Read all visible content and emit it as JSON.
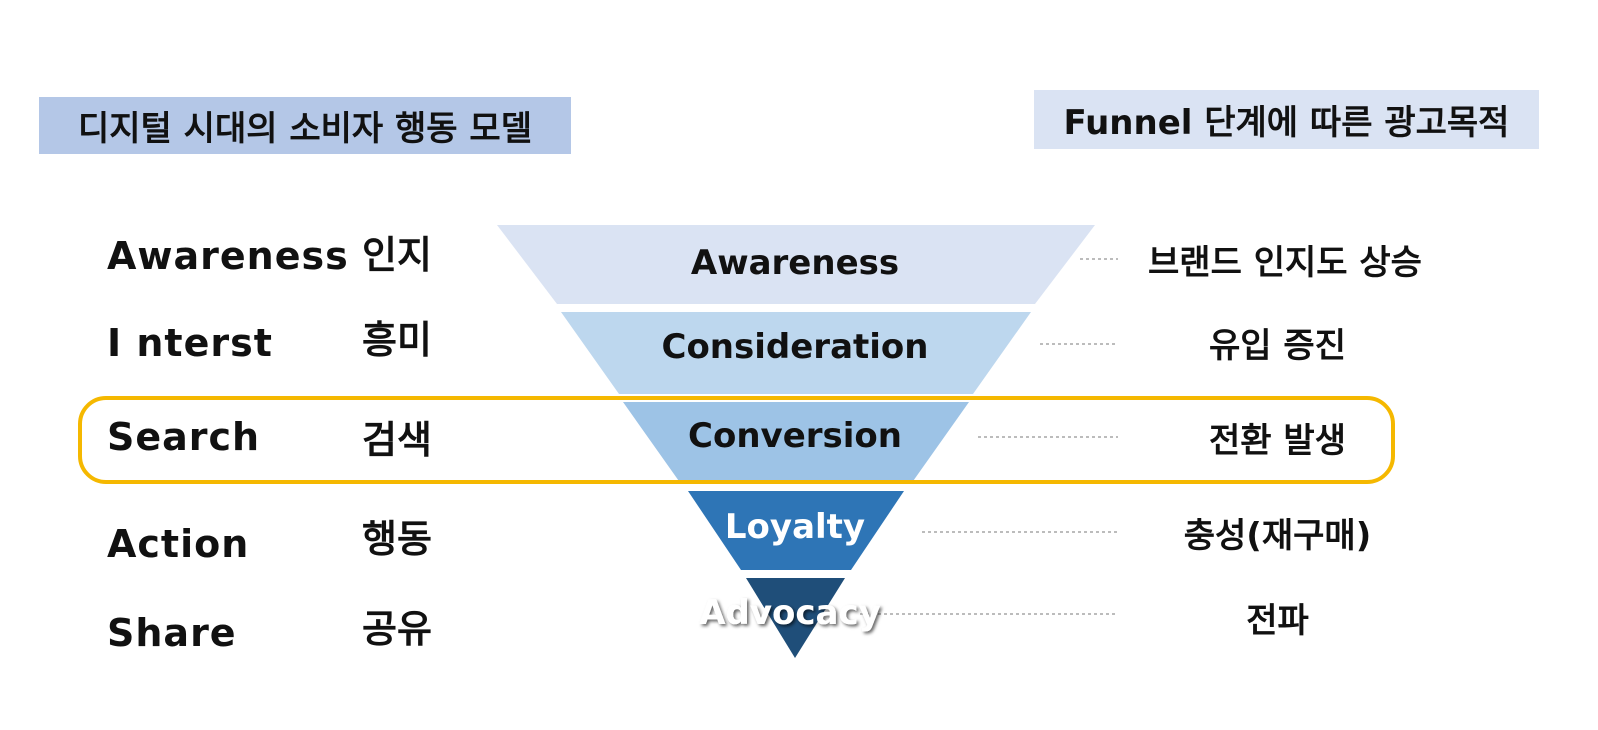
{
  "titles": {
    "left": "디지털 시대의 소비자 행동 모델",
    "right": "Funnel 단계에 따른 광고목적"
  },
  "stages": [
    {
      "en": "Awareness",
      "ko": "인지"
    },
    {
      "en": "I nterst",
      "ko": "흥미"
    },
    {
      "en": "Search",
      "ko": "검색"
    },
    {
      "en": "Action",
      "ko": "행동"
    },
    {
      "en": "Share",
      "ko": "공유"
    }
  ],
  "funnel": [
    {
      "label": "Awareness",
      "color": "#dae3f3",
      "text_color": "#111111"
    },
    {
      "label": "Consideration",
      "color": "#bdd7ee",
      "text_color": "#111111"
    },
    {
      "label": "Conversion",
      "color": "#9dc3e6",
      "text_color": "#111111"
    },
    {
      "label": "Loyalty",
      "color": "#2e75b6",
      "text_color": "#ffffff"
    },
    {
      "label": "Advocacy",
      "color": "#1f4e79",
      "text_color": "#ffffff"
    }
  ],
  "goals": [
    "브랜드 인지도 상승",
    "유입 증진",
    "전환 발생",
    "충성(재구매)",
    "전파"
  ],
  "colors": {
    "highlight": "#f5b800",
    "connector": "#a6a6a6"
  }
}
